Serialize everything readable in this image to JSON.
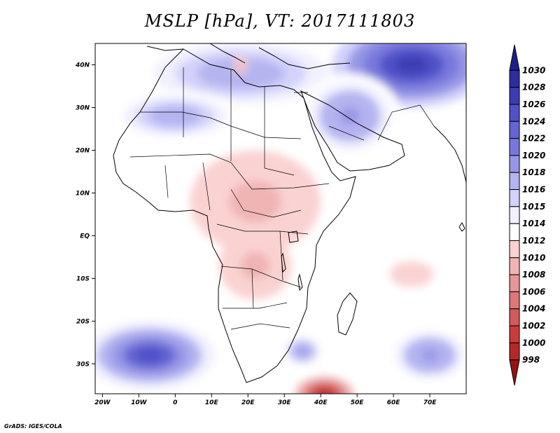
{
  "title": "MSLP [hPa], VT: 2017111803",
  "credit": "GrADS: IGES/COLA",
  "map": {
    "projection": "lat-lon",
    "lon_range": [
      -22,
      80
    ],
    "lat_range": [
      -37,
      45
    ],
    "lon_ticks": [
      {
        "value": -20,
        "label": "20W"
      },
      {
        "value": -10,
        "label": "10W"
      },
      {
        "value": 0,
        "label": "0"
      },
      {
        "value": 10,
        "label": "10E"
      },
      {
        "value": 20,
        "label": "20E"
      },
      {
        "value": 30,
        "label": "30E"
      },
      {
        "value": 40,
        "label": "40E"
      },
      {
        "value": 50,
        "label": "50E"
      },
      {
        "value": 60,
        "label": "60E"
      },
      {
        "value": 70,
        "label": "70E"
      }
    ],
    "lat_ticks": [
      {
        "value": 40,
        "label": "40N"
      },
      {
        "value": 30,
        "label": "30N"
      },
      {
        "value": 20,
        "label": "20N"
      },
      {
        "value": 10,
        "label": "10N"
      },
      {
        "value": 0,
        "label": "EQ"
      },
      {
        "value": -10,
        "label": "10S"
      },
      {
        "value": -20,
        "label": "20S"
      },
      {
        "value": -30,
        "label": "30S"
      }
    ]
  },
  "pressure_field": {
    "background_hpa": 1012,
    "centers": [
      {
        "name": "north-africa-europe-high",
        "lon": 18,
        "lat": 38,
        "hpa": 1017,
        "rx": 30,
        "ry": 9
      },
      {
        "name": "mediterranean-low",
        "lon": 18,
        "lat": 40,
        "hpa": 1008,
        "rx": 2,
        "ry": 2
      },
      {
        "name": "asia-high",
        "lon": 65,
        "lat": 40,
        "hpa": 1027,
        "rx": 22,
        "ry": 10
      },
      {
        "name": "arabia-high",
        "lon": 48,
        "lat": 28,
        "hpa": 1019,
        "rx": 14,
        "ry": 10
      },
      {
        "name": "sahara-high",
        "lon": 0,
        "lat": 28,
        "hpa": 1017,
        "rx": 18,
        "ry": 6
      },
      {
        "name": "africa-thermal-low",
        "lon": 22,
        "lat": 8,
        "hpa": 1009,
        "rx": 18,
        "ry": 12
      },
      {
        "name": "congo-low",
        "lon": 22,
        "lat": -7,
        "hpa": 1009,
        "rx": 10,
        "ry": 8
      },
      {
        "name": "south-atlantic-high",
        "lon": -7,
        "lat": -28,
        "hpa": 1025,
        "rx": 18,
        "ry": 8
      },
      {
        "name": "south-indian-high",
        "lon": 70,
        "lat": -28,
        "hpa": 1019,
        "rx": 12,
        "ry": 7
      },
      {
        "name": "madagascar-high",
        "lon": 35,
        "lat": -27,
        "hpa": 1019,
        "rx": 6,
        "ry": 4
      },
      {
        "name": "cyclone-low",
        "lon": 41,
        "lat": -37,
        "hpa": 998,
        "rx": 8,
        "ry": 4
      },
      {
        "name": "indian-ocean-trough",
        "lon": 65,
        "lat": -9,
        "hpa": 1010,
        "rx": 6,
        "ry": 3
      }
    ]
  },
  "colorbar": {
    "levels": [
      "1030",
      "1028",
      "1026",
      "1024",
      "1022",
      "1020",
      "1018",
      "1016",
      "1015",
      "1014",
      "1012",
      "1010",
      "1008",
      "1006",
      "1004",
      "1002",
      "1000",
      "998"
    ],
    "colors_high_to_low": [
      "#1e1e8c",
      "#2d2da0",
      "#3c3cb4",
      "#5050c8",
      "#6464d2",
      "#7878dc",
      "#9696e6",
      "#b4b4f0",
      "#d2d2fa",
      "#f0f0ff",
      "#ffffff",
      "#fad2d2",
      "#f0b4b4",
      "#e69696",
      "#dc7878",
      "#d25a5a",
      "#c83c3c",
      "#b42828",
      "#961414"
    ]
  }
}
